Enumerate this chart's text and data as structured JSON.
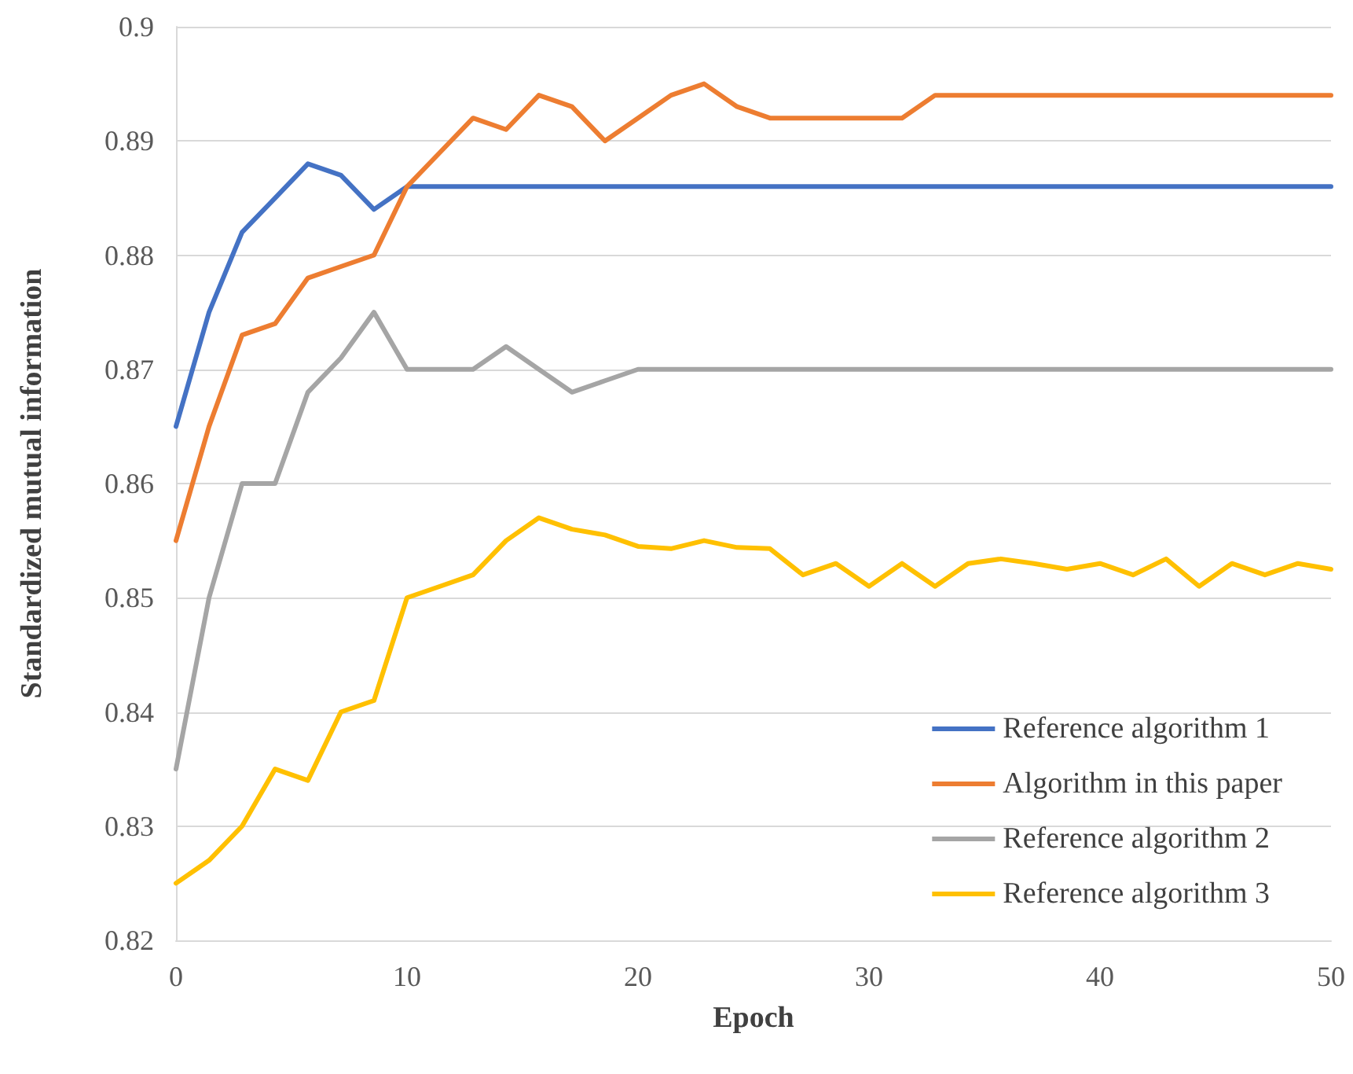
{
  "chart_data": {
    "type": "line",
    "xlabel": "Epoch",
    "ylabel": "Standardized mutual information",
    "x": [
      0,
      1.43,
      2.86,
      4.29,
      5.71,
      7.14,
      8.57,
      10,
      11.43,
      12.86,
      14.29,
      15.71,
      17.14,
      18.57,
      20,
      21.43,
      22.86,
      24.29,
      25.71,
      27.14,
      28.57,
      30,
      31.43,
      32.86,
      34.29,
      35.71,
      37.14,
      38.57,
      40,
      41.43,
      42.86,
      44.29,
      45.71,
      47.14,
      48.57,
      50
    ],
    "series": [
      {
        "name": "Reference algorithm 1",
        "color": "#4472c4",
        "values": [
          0.865,
          0.875,
          0.882,
          0.885,
          0.888,
          0.887,
          0.884,
          0.886,
          0.886,
          0.886,
          0.886,
          0.886,
          0.886,
          0.886,
          0.886,
          0.886,
          0.886,
          0.886,
          0.886,
          0.886,
          0.886,
          0.886,
          0.886,
          0.886,
          0.886,
          0.886,
          0.886,
          0.886,
          0.886,
          0.886,
          0.886,
          0.886,
          0.886,
          0.886,
          0.886,
          0.886
        ]
      },
      {
        "name": "Algorithm in this paper",
        "color": "#ed7d31",
        "values": [
          0.855,
          0.865,
          0.873,
          0.874,
          0.878,
          0.879,
          0.88,
          0.886,
          0.889,
          0.892,
          0.891,
          0.894,
          0.893,
          0.89,
          0.892,
          0.894,
          0.895,
          0.893,
          0.892,
          0.892,
          0.892,
          0.892,
          0.892,
          0.894,
          0.894,
          0.894,
          0.894,
          0.894,
          0.894,
          0.894,
          0.894,
          0.894,
          0.894,
          0.894,
          0.894,
          0.894
        ]
      },
      {
        "name": "Reference algorithm 2",
        "color": "#a5a5a5",
        "values": [
          0.835,
          0.85,
          0.86,
          0.86,
          0.868,
          0.871,
          0.875,
          0.87,
          0.87,
          0.87,
          0.872,
          0.87,
          0.868,
          0.869,
          0.87,
          0.87,
          0.87,
          0.87,
          0.87,
          0.87,
          0.87,
          0.87,
          0.87,
          0.87,
          0.87,
          0.87,
          0.87,
          0.87,
          0.87,
          0.87,
          0.87,
          0.87,
          0.87,
          0.87,
          0.87,
          0.87
        ]
      },
      {
        "name": "Reference algorithm 3",
        "color": "#ffc000",
        "values": [
          0.825,
          0.827,
          0.83,
          0.835,
          0.834,
          0.84,
          0.841,
          0.85,
          0.851,
          0.852,
          0.855,
          0.857,
          0.856,
          0.8555,
          0.8545,
          0.8543,
          0.855,
          0.8544,
          0.8543,
          0.852,
          0.853,
          0.851,
          0.853,
          0.851,
          0.853,
          0.8534,
          0.853,
          0.8525,
          0.853,
          0.852,
          0.8534,
          0.851,
          0.853,
          0.852,
          0.853,
          0.8525
        ]
      }
    ],
    "xlim": [
      0,
      50
    ],
    "xticks": [
      0,
      10,
      20,
      30,
      40,
      50
    ],
    "ylim": [
      0.82,
      0.9
    ],
    "yticks": [
      0.82,
      0.83,
      0.84,
      0.85,
      0.86,
      0.87,
      0.88,
      0.89,
      0.9
    ],
    "grid": "y",
    "legend": "bottom right",
    "marker": "none",
    "line_style": "solid"
  }
}
